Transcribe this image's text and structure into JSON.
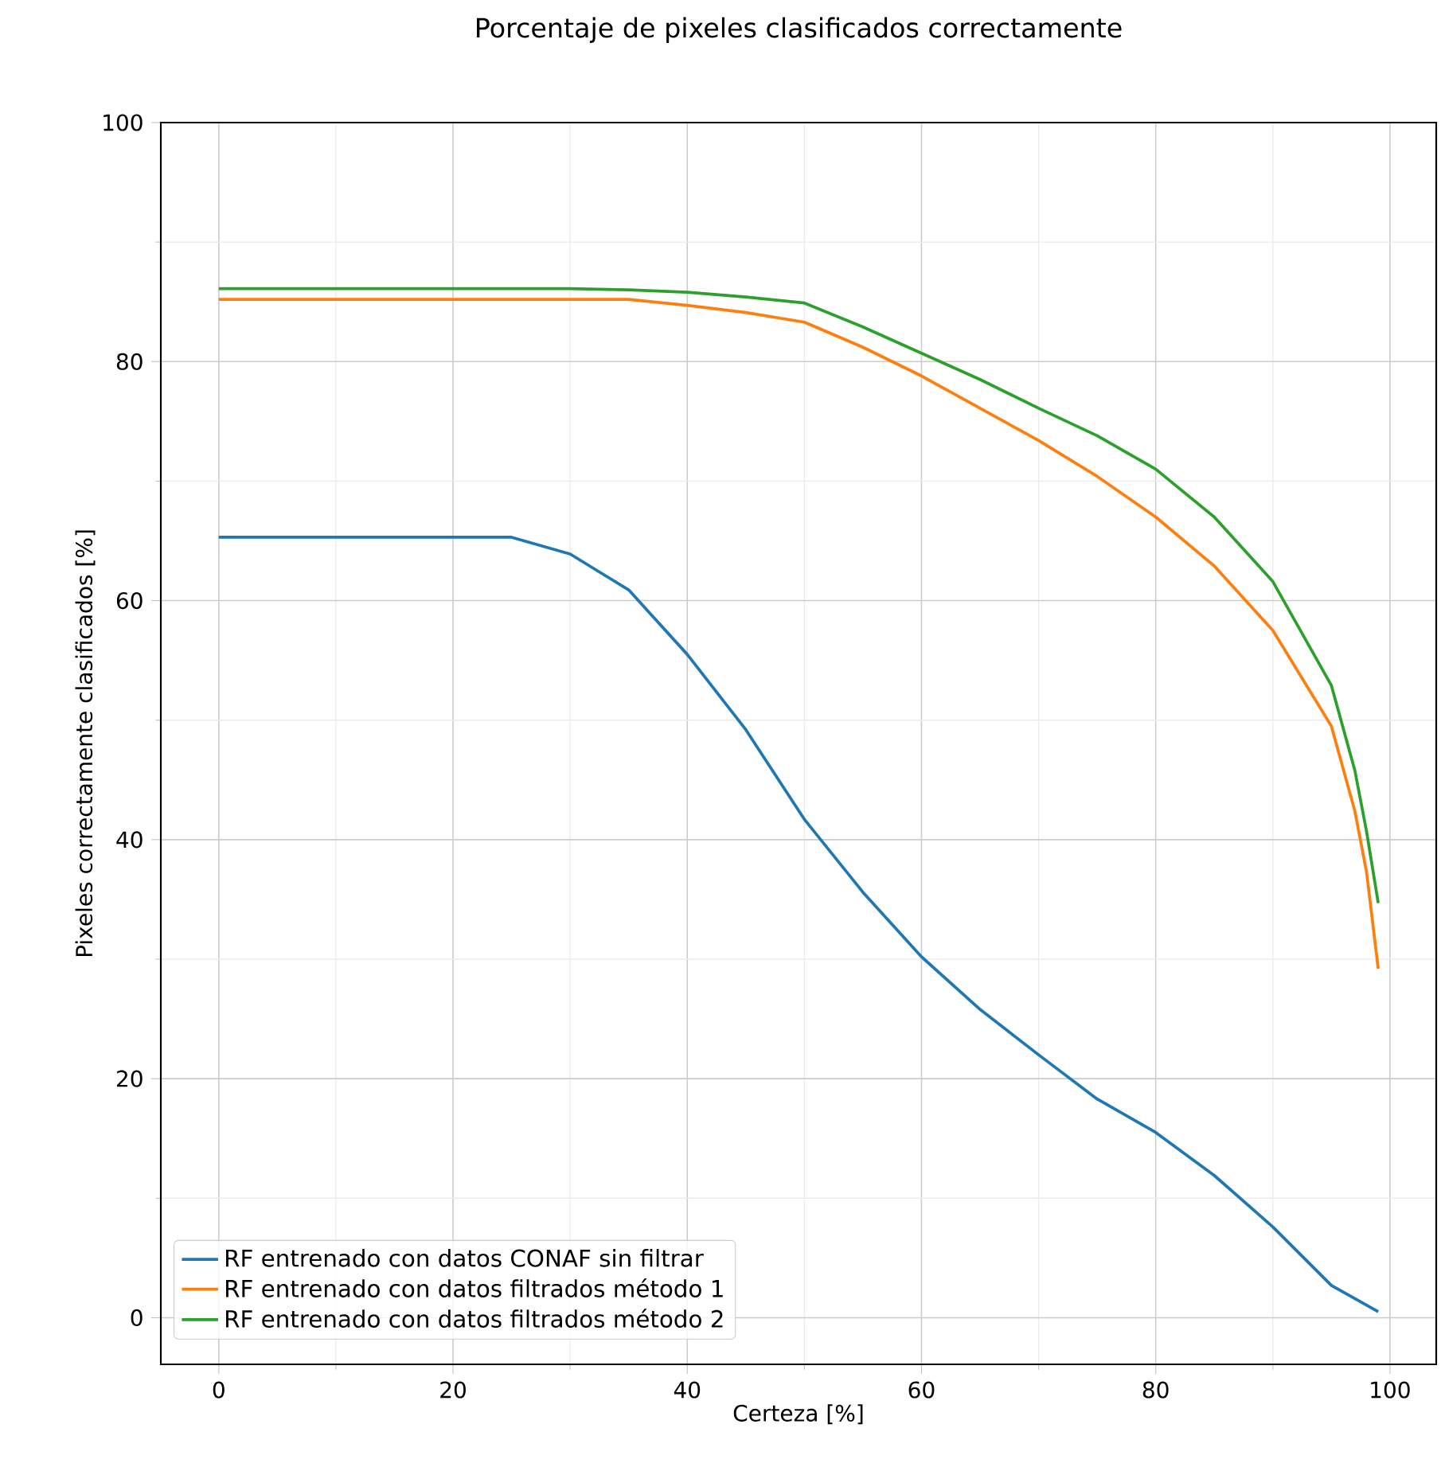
{
  "chart_data": {
    "type": "line",
    "title": "Porcentaje de pixeles clasificados correctamente",
    "xlabel": "Certeza [%]",
    "ylabel": "Pixeles correctamente clasificados [%]",
    "xlim": [
      -4.95,
      103.95
    ],
    "ylim": [
      -3.9,
      100
    ],
    "xticks": [
      0,
      20,
      40,
      60,
      80,
      100
    ],
    "yticks": [
      0,
      20,
      40,
      60,
      80,
      100
    ],
    "grid": true,
    "legend": "bottom left",
    "series": [
      {
        "name": "RF entrenado con datos CONAF sin filtrar",
        "color": "#1f77b4",
        "x": [
          0,
          5,
          10,
          15,
          20,
          25,
          30,
          35,
          40,
          45,
          50,
          55,
          60,
          65,
          70,
          75,
          80,
          85,
          90,
          95,
          99
        ],
        "values": [
          65.3,
          65.3,
          65.3,
          65.3,
          65.3,
          65.3,
          63.9,
          60.9,
          55.5,
          49.2,
          41.7,
          35.6,
          30.2,
          25.8,
          22.0,
          18.3,
          15.5,
          11.9,
          7.6,
          2.7,
          0.5
        ]
      },
      {
        "name": "RF entrenado con datos filtrados método 1",
        "color": "#ff7f0e",
        "x": [
          0,
          5,
          10,
          15,
          20,
          25,
          30,
          35,
          40,
          45,
          50,
          55,
          60,
          65,
          70,
          75,
          80,
          85,
          90,
          95,
          97,
          98,
          99
        ],
        "values": [
          85.2,
          85.2,
          85.2,
          85.2,
          85.2,
          85.2,
          85.2,
          85.2,
          84.7,
          84.1,
          83.3,
          81.2,
          78.8,
          76.1,
          73.4,
          70.4,
          67.0,
          62.9,
          57.5,
          49.5,
          42.4,
          37.3,
          29.2
        ]
      },
      {
        "name": "RF entrenado con datos filtrados método 2",
        "color": "#2ca02c",
        "x": [
          0,
          5,
          10,
          15,
          20,
          25,
          30,
          35,
          40,
          45,
          50,
          55,
          60,
          65,
          70,
          75,
          80,
          85,
          90,
          95,
          97,
          98,
          99
        ],
        "values": [
          86.1,
          86.1,
          86.1,
          86.1,
          86.1,
          86.1,
          86.1,
          86.0,
          85.8,
          85.4,
          84.9,
          82.9,
          80.7,
          78.5,
          76.1,
          73.8,
          71.0,
          67.0,
          61.6,
          52.9,
          45.8,
          40.7,
          34.7
        ]
      }
    ]
  }
}
